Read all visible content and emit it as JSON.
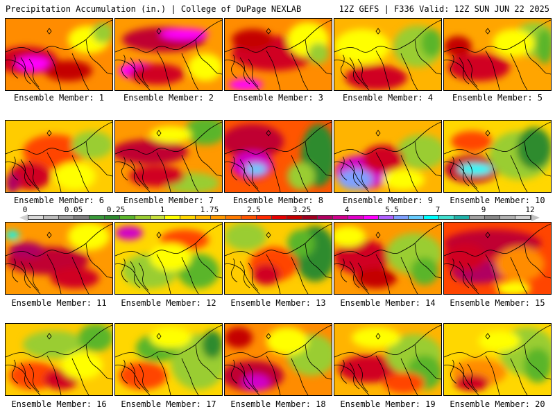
{
  "header": {
    "title_left": "Precipitation Accumulation (in.) | College of DuPage NEXLAB",
    "title_right": "12Z GEFS | F336 Valid: 12Z SUN JUN 22 2025"
  },
  "colorbar": {
    "labels": [
      "0",
      "0.05",
      "0.25",
      "1",
      "1.75",
      "2.5",
      "3.25",
      "4",
      "5.5",
      "7",
      "9",
      "12"
    ],
    "colors": [
      "#d9d9d9",
      "#bdbdbd",
      "#9e9e9e",
      "#7f7f7f",
      "#3a9a3a",
      "#2e8b2e",
      "#5ab52a",
      "#9acd32",
      "#c8e03c",
      "#ffff00",
      "#ffd700",
      "#ffb400",
      "#ff9900",
      "#ff7a00",
      "#ff5500",
      "#ff2a00",
      "#e60000",
      "#c40000",
      "#a00020",
      "#b00060",
      "#d0008c",
      "#e000c8",
      "#ff00ff",
      "#b060ff",
      "#7fa0ff",
      "#66ccff",
      "#00ffff",
      "#40e0d0",
      "#20b2aa",
      "#a0a0a0",
      "#888888",
      "#b0b0b0",
      "#d0d0d0"
    ]
  },
  "members": [
    {
      "caption": "Ensemble Member: 1",
      "base": "#ff8c00",
      "blobs": [
        [
          "#d00020",
          30,
          60,
          45,
          20
        ],
        [
          "#ff00ff",
          40,
          65,
          25,
          10
        ],
        [
          "#ffff00",
          120,
          30,
          30,
          20
        ],
        [
          "#9acd32",
          140,
          20,
          15,
          15
        ],
        [
          "#c40000",
          90,
          75,
          35,
          15
        ]
      ]
    },
    {
      "caption": "Ensemble Member: 2",
      "base": "#ff9900",
      "blobs": [
        [
          "#c00030",
          70,
          30,
          60,
          18
        ],
        [
          "#ff00ff",
          100,
          22,
          35,
          8
        ],
        [
          "#ff00ff",
          35,
          75,
          30,
          12
        ],
        [
          "#d00020",
          60,
          80,
          40,
          15
        ],
        [
          "#ffff00",
          130,
          70,
          25,
          20
        ]
      ]
    },
    {
      "caption": "Ensemble Member: 3",
      "base": "#ff8c00",
      "blobs": [
        [
          "#d00020",
          70,
          50,
          60,
          25
        ],
        [
          "#ff00ff",
          30,
          95,
          25,
          8
        ],
        [
          "#ffff00",
          120,
          30,
          30,
          25
        ],
        [
          "#9acd32",
          135,
          50,
          15,
          15
        ],
        [
          "#c40000",
          40,
          30,
          30,
          15
        ]
      ]
    },
    {
      "caption": "Ensemble Member: 4",
      "base": "#ffb400",
      "blobs": [
        [
          "#9acd32",
          120,
          40,
          35,
          30
        ],
        [
          "#d00020",
          60,
          85,
          45,
          18
        ],
        [
          "#ffff00",
          40,
          40,
          40,
          25
        ],
        [
          "#5ab52a",
          140,
          35,
          15,
          20
        ]
      ]
    },
    {
      "caption": "Ensemble Member: 5",
      "base": "#ffa500",
      "blobs": [
        [
          "#d00020",
          50,
          70,
          45,
          20
        ],
        [
          "#9acd32",
          130,
          30,
          30,
          25
        ],
        [
          "#ffff00",
          100,
          35,
          30,
          20
        ],
        [
          "#5ab52a",
          145,
          40,
          12,
          25
        ],
        [
          "#c40000",
          20,
          40,
          20,
          15
        ]
      ]
    },
    {
      "caption": "Ensemble Member: 6",
      "base": "#ffcc00",
      "blobs": [
        [
          "#ff4500",
          70,
          45,
          45,
          25
        ],
        [
          "#d00020",
          35,
          80,
          30,
          20
        ],
        [
          "#9acd32",
          125,
          35,
          30,
          20
        ],
        [
          "#b00060",
          10,
          90,
          10,
          15
        ],
        [
          "#ffff00",
          100,
          80,
          30,
          20
        ]
      ]
    },
    {
      "caption": "Ensemble Member: 7",
      "base": "#ff9900",
      "blobs": [
        [
          "#c00030",
          50,
          45,
          55,
          18
        ],
        [
          "#5ab52a",
          130,
          15,
          30,
          20
        ],
        [
          "#9acd32",
          110,
          90,
          40,
          15
        ],
        [
          "#d00020",
          60,
          80,
          40,
          15
        ],
        [
          "#ffff00",
          80,
          20,
          30,
          12
        ]
      ]
    },
    {
      "caption": "Ensemble Member: 8",
      "base": "#ff5500",
      "blobs": [
        [
          "#c00030",
          40,
          30,
          45,
          25
        ],
        [
          "#d000c8",
          40,
          65,
          30,
          20
        ],
        [
          "#66ccff",
          45,
          70,
          15,
          8
        ],
        [
          "#2e8b2e",
          135,
          50,
          25,
          45
        ],
        [
          "#9acd32",
          110,
          80,
          20,
          20
        ]
      ]
    },
    {
      "caption": "Ensemble Member: 9",
      "base": "#ffb400",
      "blobs": [
        [
          "#d000c8",
          40,
          75,
          40,
          25
        ],
        [
          "#7fa0ff",
          30,
          85,
          25,
          15
        ],
        [
          "#9acd32",
          125,
          45,
          35,
          25
        ],
        [
          "#d00020",
          70,
          55,
          30,
          20
        ],
        [
          "#ffff00",
          100,
          85,
          30,
          15
        ]
      ]
    },
    {
      "caption": "Ensemble Member: 10",
      "base": "#ffd700",
      "blobs": [
        [
          "#c00030",
          40,
          70,
          40,
          20
        ],
        [
          "#00ffff",
          45,
          70,
          25,
          8
        ],
        [
          "#9acd32",
          110,
          50,
          45,
          35
        ],
        [
          "#2e8b2e",
          130,
          40,
          25,
          30
        ],
        [
          "#ff4500",
          40,
          30,
          30,
          15
        ]
      ]
    },
    {
      "caption": "Ensemble Member: 11",
      "base": "#ff9900",
      "blobs": [
        [
          "#c00030",
          60,
          55,
          60,
          20
        ],
        [
          "#00ffff",
          10,
          18,
          10,
          6
        ],
        [
          "#b00060",
          30,
          40,
          25,
          12
        ],
        [
          "#ffff00",
          120,
          20,
          30,
          20
        ],
        [
          "#d00020",
          100,
          80,
          35,
          15
        ]
      ]
    },
    {
      "caption": "Ensemble Member: 12",
      "base": "#ffd700",
      "blobs": [
        [
          "#d000c8",
          20,
          15,
          20,
          10
        ],
        [
          "#9acd32",
          50,
          70,
          40,
          25
        ],
        [
          "#5ab52a",
          120,
          70,
          30,
          25
        ],
        [
          "#ff4500",
          100,
          25,
          35,
          15
        ],
        [
          "#ffff00",
          80,
          50,
          30,
          20
        ]
      ]
    },
    {
      "caption": "Ensemble Member: 13",
      "base": "#ffcc00",
      "blobs": [
        [
          "#2e8b2e",
          130,
          45,
          30,
          40
        ],
        [
          "#9acd32",
          30,
          20,
          30,
          20
        ],
        [
          "#ff4500",
          70,
          60,
          35,
          25
        ],
        [
          "#d00020",
          60,
          75,
          20,
          15
        ],
        [
          "#5ab52a",
          110,
          30,
          20,
          20
        ]
      ]
    },
    {
      "caption": "Ensemble Member: 14",
      "base": "#ff9900",
      "blobs": [
        [
          "#d00020",
          40,
          50,
          40,
          25
        ],
        [
          "#9acd32",
          115,
          45,
          40,
          30
        ],
        [
          "#ffff00",
          20,
          20,
          25,
          15
        ],
        [
          "#5ab52a",
          130,
          70,
          20,
          20
        ],
        [
          "#c40000",
          60,
          80,
          30,
          15
        ]
      ]
    },
    {
      "caption": "Ensemble Member: 15",
      "base": "#ff4500",
      "blobs": [
        [
          "#c00030",
          70,
          30,
          70,
          20
        ],
        [
          "#b00060",
          50,
          70,
          40,
          18
        ],
        [
          "#ff8c00",
          110,
          60,
          35,
          25
        ],
        [
          "#ffff00",
          100,
          95,
          25,
          10
        ],
        [
          "#d00020",
          30,
          50,
          30,
          20
        ]
      ]
    },
    {
      "caption": "Ensemble Member: 16",
      "base": "#ffcc00",
      "blobs": [
        [
          "#9acd32",
          70,
          30,
          45,
          20
        ],
        [
          "#5ab52a",
          130,
          20,
          25,
          20
        ],
        [
          "#ff4500",
          40,
          75,
          35,
          20
        ],
        [
          "#d00020",
          80,
          80,
          25,
          15
        ],
        [
          "#ffff00",
          110,
          60,
          30,
          20
        ]
      ]
    },
    {
      "caption": "Ensemble Member: 17",
      "base": "#ffd700",
      "blobs": [
        [
          "#9acd32",
          120,
          55,
          40,
          40
        ],
        [
          "#5ab52a",
          60,
          35,
          30,
          20
        ],
        [
          "#ff4500",
          40,
          75,
          35,
          20
        ],
        [
          "#ffff00",
          80,
          20,
          30,
          15
        ],
        [
          "#2e8b2e",
          140,
          30,
          15,
          20
        ]
      ]
    },
    {
      "caption": "Ensemble Member: 18",
      "base": "#ff8c00",
      "blobs": [
        [
          "#c00030",
          40,
          75,
          45,
          22
        ],
        [
          "#d000c8",
          45,
          85,
          20,
          12
        ],
        [
          "#9acd32",
          125,
          45,
          35,
          30
        ],
        [
          "#ffff00",
          90,
          25,
          30,
          20
        ],
        [
          "#c40000",
          20,
          20,
          20,
          15
        ]
      ]
    },
    {
      "caption": "Ensemble Member: 19",
      "base": "#ffb400",
      "blobs": [
        [
          "#d00020",
          50,
          65,
          45,
          20
        ],
        [
          "#9acd32",
          115,
          45,
          40,
          30
        ],
        [
          "#5ab52a",
          130,
          70,
          25,
          25
        ],
        [
          "#ffff00",
          60,
          20,
          35,
          15
        ],
        [
          "#ff4500",
          100,
          85,
          30,
          15
        ]
      ]
    },
    {
      "caption": "Ensemble Member: 20",
      "base": "#ffd700",
      "blobs": [
        [
          "#9acd32",
          120,
          40,
          40,
          35
        ],
        [
          "#ff8c00",
          50,
          70,
          40,
          20
        ],
        [
          "#d00020",
          40,
          85,
          25,
          12
        ],
        [
          "#5ab52a",
          135,
          60,
          20,
          25
        ],
        [
          "#ffff00",
          80,
          25,
          30,
          15
        ]
      ]
    }
  ]
}
